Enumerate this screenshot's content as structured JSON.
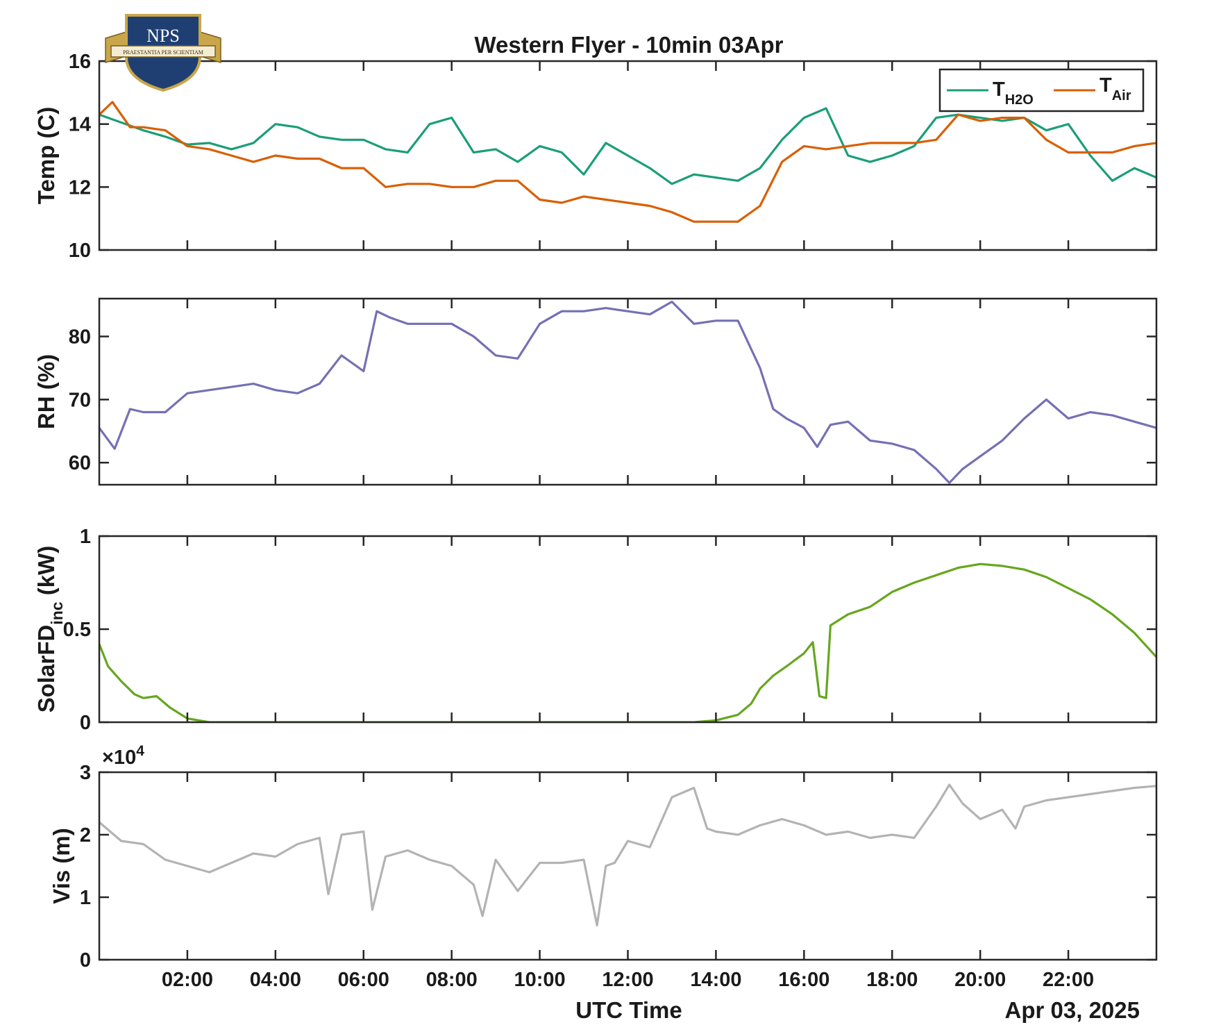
{
  "title": "Western Flyer - 10min 03Apr",
  "logo": {
    "text": "NPS",
    "motto": "PRAESTANTIA PER SCIENTIAM",
    "colors": {
      "shield": "#1f3f73",
      "gold": "#c9a64a"
    }
  },
  "x_axis": {
    "label": "UTC Time",
    "date_label": "Apr 03, 2025",
    "range_hours": [
      0,
      24
    ],
    "ticks": [
      2,
      4,
      6,
      8,
      10,
      12,
      14,
      16,
      18,
      20,
      22
    ],
    "tick_labels": [
      "02:00",
      "04:00",
      "06:00",
      "08:00",
      "10:00",
      "12:00",
      "14:00",
      "16:00",
      "18:00",
      "20:00",
      "22:00"
    ]
  },
  "chart_data": [
    {
      "type": "line",
      "ylabel": "Temp (C)",
      "ylim": [
        10,
        16
      ],
      "yticks": [
        10,
        12,
        14,
        16
      ],
      "ytick_labels": [
        "10",
        "12",
        "14",
        "16"
      ],
      "legend": {
        "placement": "top-right"
      },
      "series": [
        {
          "name": "T",
          "subscript": "H2O",
          "color": "#1b9e77",
          "x": [
            0,
            1,
            1.5,
            2,
            2.5,
            3,
            3.5,
            4,
            4.5,
            5,
            5.5,
            6,
            6.5,
            7,
            7.5,
            8,
            8.5,
            9,
            9.5,
            10,
            10.5,
            11,
            11.5,
            12,
            12.5,
            13,
            13.5,
            14,
            14.5,
            15,
            15.5,
            16,
            16.5,
            17,
            17.5,
            18,
            18.5,
            19,
            19.5,
            20,
            20.5,
            21,
            21.5,
            22,
            22.5,
            23,
            23.5,
            24
          ],
          "y": [
            14.3,
            13.8,
            13.6,
            13.35,
            13.4,
            13.2,
            13.4,
            14.0,
            13.9,
            13.6,
            13.5,
            13.5,
            13.2,
            13.1,
            14.0,
            14.2,
            13.1,
            13.2,
            12.8,
            13.3,
            13.1,
            12.4,
            13.4,
            13.0,
            12.6,
            12.1,
            12.4,
            12.3,
            12.2,
            12.6,
            13.5,
            14.2,
            14.5,
            13.0,
            12.8,
            13.0,
            13.3,
            14.2,
            14.3,
            14.2,
            14.1,
            14.2,
            13.8,
            14.0,
            13.0,
            12.2,
            12.6,
            12.3
          ]
        },
        {
          "name": "T",
          "subscript": "Air",
          "color": "#d95f02",
          "x": [
            0,
            0.3,
            0.7,
            1,
            1.5,
            2,
            2.5,
            3,
            3.5,
            4,
            4.5,
            5,
            5.5,
            6,
            6.5,
            7,
            7.5,
            8,
            8.5,
            9,
            9.5,
            10,
            10.5,
            11,
            11.5,
            12,
            12.5,
            13,
            13.5,
            14,
            14.5,
            15,
            15.5,
            16,
            16.5,
            17,
            17.5,
            18,
            18.5,
            19,
            19.5,
            20,
            20.5,
            21,
            21.5,
            22,
            22.5,
            23,
            23.5,
            24
          ],
          "y": [
            14.3,
            14.7,
            13.9,
            13.9,
            13.8,
            13.3,
            13.2,
            13.0,
            12.8,
            13.0,
            12.9,
            12.9,
            12.6,
            12.6,
            12.0,
            12.1,
            12.1,
            12.0,
            12.0,
            12.2,
            12.2,
            11.6,
            11.5,
            11.7,
            11.6,
            11.5,
            11.4,
            11.2,
            10.9,
            10.9,
            10.9,
            11.4,
            12.8,
            13.3,
            13.2,
            13.3,
            13.4,
            13.4,
            13.4,
            13.5,
            14.3,
            14.1,
            14.2,
            14.2,
            13.5,
            13.1,
            13.1,
            13.1,
            13.3,
            13.4
          ]
        }
      ]
    },
    {
      "type": "line",
      "ylabel": "RH (%)",
      "ylim": [
        56.5,
        86
      ],
      "yticks": [
        60,
        70,
        80
      ],
      "ytick_labels": [
        "60",
        "70",
        "80"
      ],
      "series": [
        {
          "color": "#7570b3",
          "x": [
            0,
            0.35,
            0.7,
            1,
            1.5,
            2,
            2.5,
            3,
            3.5,
            4,
            4.5,
            5,
            5.5,
            6,
            6.3,
            6.6,
            7,
            7.5,
            8,
            8.5,
            9,
            9.5,
            10,
            10.5,
            11,
            11.5,
            12,
            12.5,
            13,
            13.5,
            14,
            14.5,
            15,
            15.3,
            15.6,
            16,
            16.3,
            16.6,
            17,
            17.5,
            18,
            18.5,
            19,
            19.3,
            19.6,
            20,
            20.5,
            21,
            21.5,
            22,
            22.5,
            23,
            23.5,
            24
          ],
          "y": [
            65.5,
            62.2,
            68.5,
            68.0,
            68.0,
            71.0,
            71.5,
            72.0,
            72.5,
            71.5,
            71.0,
            72.5,
            77.0,
            74.5,
            84.0,
            83.0,
            82.0,
            82.0,
            82.0,
            80.0,
            77.0,
            76.5,
            82.0,
            84.0,
            84.0,
            84.5,
            84.0,
            83.5,
            85.5,
            82.0,
            82.5,
            82.5,
            75.0,
            68.5,
            67.0,
            65.5,
            62.5,
            66.0,
            66.5,
            63.5,
            63.0,
            62.0,
            59.0,
            56.8,
            59.0,
            61.0,
            63.5,
            67.0,
            70.0,
            67.0,
            68.0,
            67.5,
            66.5,
            65.5
          ]
        }
      ]
    },
    {
      "type": "line",
      "ylabel": "SolarFD",
      "ylabel_sub": "inc",
      "ylabel_unit": "(kW)",
      "ylim": [
        0,
        1
      ],
      "yticks": [
        0,
        0.5,
        1
      ],
      "ytick_labels": [
        "0",
        "0.5",
        "1"
      ],
      "series": [
        {
          "color": "#66a61e",
          "x": [
            0,
            0.2,
            0.5,
            0.8,
            1.0,
            1.3,
            1.6,
            2.0,
            2.5,
            3,
            6,
            10,
            13.5,
            14.0,
            14.5,
            14.8,
            15.0,
            15.3,
            15.6,
            16.0,
            16.2,
            16.35,
            16.5,
            16.6,
            17.0,
            17.5,
            18.0,
            18.5,
            19.0,
            19.5,
            20.0,
            20.5,
            21.0,
            21.5,
            22.0,
            22.5,
            23.0,
            23.5,
            24.0
          ],
          "y": [
            0.42,
            0.3,
            0.22,
            0.15,
            0.13,
            0.14,
            0.08,
            0.02,
            0.0,
            0.0,
            0.0,
            0.0,
            0.0,
            0.01,
            0.04,
            0.1,
            0.18,
            0.25,
            0.3,
            0.37,
            0.43,
            0.14,
            0.13,
            0.52,
            0.58,
            0.62,
            0.7,
            0.75,
            0.79,
            0.83,
            0.85,
            0.84,
            0.82,
            0.78,
            0.72,
            0.66,
            0.58,
            0.48,
            0.35
          ]
        }
      ]
    },
    {
      "type": "line",
      "ylabel": "Vis (m)",
      "ylim": [
        0,
        30000
      ],
      "yticks": [
        0,
        10000,
        20000,
        30000
      ],
      "ytick_labels": [
        "0",
        "1",
        "2",
        "3"
      ],
      "exponent_label": "×10",
      "exponent_power": "4",
      "series": [
        {
          "color": "#b3b3b3",
          "x": [
            0,
            0.5,
            1.0,
            1.5,
            2.0,
            2.5,
            3.0,
            3.5,
            4.0,
            4.5,
            5.0,
            5.2,
            5.5,
            6.0,
            6.2,
            6.5,
            7.0,
            7.5,
            8.0,
            8.5,
            8.7,
            9.0,
            9.5,
            10.0,
            10.5,
            11.0,
            11.3,
            11.5,
            11.7,
            12.0,
            12.5,
            13.0,
            13.5,
            13.8,
            14.0,
            14.5,
            15.0,
            15.5,
            16.0,
            16.5,
            17.0,
            17.5,
            18.0,
            18.5,
            19.0,
            19.3,
            19.6,
            20.0,
            20.5,
            20.8,
            21.0,
            21.5,
            22.0,
            22.5,
            23.0,
            23.5,
            24.0
          ],
          "y": [
            22000,
            19000,
            18500,
            16000,
            15000,
            14000,
            15500,
            17000,
            16500,
            18500,
            19500,
            10500,
            20000,
            20500,
            8000,
            16500,
            17500,
            16000,
            15000,
            12000,
            7000,
            16000,
            11000,
            15500,
            15500,
            16000,
            5500,
            15000,
            15500,
            19000,
            18000,
            26000,
            27500,
            21000,
            20500,
            20000,
            21500,
            22500,
            21500,
            20000,
            20500,
            19500,
            20000,
            19500,
            24500,
            28000,
            25000,
            22500,
            24000,
            21000,
            24500,
            25500,
            26000,
            26500,
            27000,
            27500,
            27800
          ]
        }
      ]
    }
  ]
}
